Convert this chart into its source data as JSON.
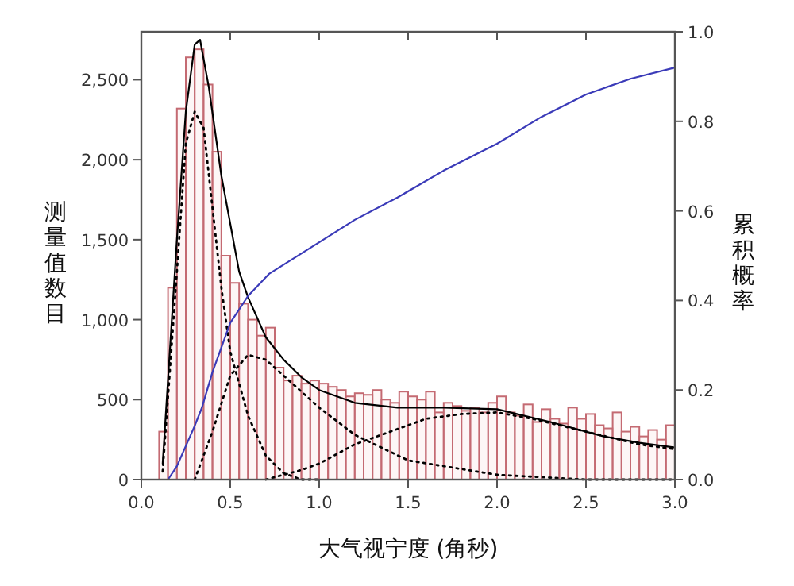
{
  "chart_data": {
    "type": "histogram",
    "xlabel": "大气视宁度 (角秒)",
    "ylabel": "测量值数目",
    "y2label": "累积概率",
    "bins": [
      0.1,
      0.15,
      0.2,
      0.25,
      0.3,
      0.35,
      0.4,
      0.45,
      0.5,
      0.55,
      0.6,
      0.65,
      0.7,
      0.75,
      0.8,
      0.85,
      0.9,
      0.95,
      1.0,
      1.05,
      1.1,
      1.15,
      1.2,
      1.25,
      1.3,
      1.35,
      1.4,
      1.45,
      1.5,
      1.55,
      1.6,
      1.65,
      1.7,
      1.75,
      1.8,
      1.85,
      1.9,
      1.95,
      2.0,
      2.05,
      2.1,
      2.15,
      2.2,
      2.25,
      2.3,
      2.35,
      2.4,
      2.45,
      2.5,
      2.55,
      2.6,
      2.65,
      2.7,
      2.75,
      2.8,
      2.85,
      2.9,
      2.95,
      3.0
    ],
    "values": [
      300,
      1200,
      2320,
      2640,
      2690,
      2470,
      2050,
      1400,
      1230,
      1100,
      1000,
      900,
      950,
      700,
      620,
      650,
      600,
      620,
      600,
      580,
      560,
      520,
      540,
      530,
      560,
      500,
      480,
      550,
      520,
      500,
      550,
      420,
      480,
      460,
      430,
      450,
      420,
      480,
      520,
      420,
      400,
      470,
      360,
      440,
      380,
      350,
      450,
      380,
      410,
      340,
      320,
      420,
      300,
      330,
      270,
      310,
      250,
      340
    ],
    "color": "#c46a72",
    "series": [
      {
        "type": "line",
        "color": "#000000",
        "line_style": "solid",
        "x": [
          0.12,
          0.2,
          0.25,
          0.3,
          0.33,
          0.38,
          0.45,
          0.55,
          0.6,
          0.7,
          0.8,
          0.9,
          1.0,
          1.2,
          1.44,
          1.7,
          2.0,
          2.3,
          2.6,
          2.8,
          3.0
        ],
        "values": [
          100,
          1500,
          2300,
          2720,
          2750,
          2450,
          1900,
          1300,
          1140,
          890,
          750,
          640,
          560,
          480,
          450,
          450,
          440,
          360,
          270,
          230,
          200
        ]
      },
      {
        "type": "line",
        "color": "#000000",
        "line_style": "dotted",
        "x": [
          0.12,
          0.2,
          0.25,
          0.3,
          0.35,
          0.4,
          0.45,
          0.5,
          0.6,
          0.7,
          0.8,
          0.9,
          1.0
        ],
        "values": [
          50,
          1300,
          2100,
          2300,
          2200,
          1700,
          1200,
          800,
          400,
          150,
          40,
          0,
          0
        ]
      },
      {
        "type": "line",
        "color": "#000000",
        "line_style": "dotted",
        "x": [
          0.3,
          0.4,
          0.5,
          0.6,
          0.7,
          0.8,
          1.0,
          1.2,
          1.5,
          2.0,
          2.5,
          3.0
        ],
        "values": [
          0,
          300,
          650,
          780,
          750,
          650,
          450,
          280,
          120,
          30,
          0,
          0
        ]
      },
      {
        "type": "line",
        "color": "#000000",
        "line_style": "dotted",
        "x": [
          0.7,
          0.9,
          1.0,
          1.2,
          1.4,
          1.6,
          1.8,
          2.0,
          2.2,
          2.5,
          2.8,
          3.0
        ],
        "values": [
          0,
          60,
          100,
          220,
          300,
          380,
          410,
          420,
          380,
          300,
          220,
          190
        ]
      },
      {
        "type": "line",
        "color": "#3a3ab8",
        "line_style": "solid",
        "axis": "y2",
        "x": [
          0.15,
          0.2,
          0.3,
          0.34,
          0.4,
          0.5,
          0.6,
          0.72,
          1.0,
          1.2,
          1.44,
          1.7,
          2.0,
          2.25,
          2.5,
          2.75,
          3.0
        ],
        "values": [
          0,
          0.03,
          0.12,
          0.16,
          0.24,
          0.35,
          0.41,
          0.46,
          0.53,
          0.58,
          0.63,
          0.69,
          0.75,
          0.81,
          0.86,
          0.895,
          0.92
        ]
      }
    ],
    "xlim": [
      0,
      3
    ],
    "ylim": [
      0,
      2800
    ],
    "y2lim": [
      0,
      1
    ],
    "xticks": [
      {
        "value": 0,
        "label": "0.0"
      },
      {
        "value": 0.5,
        "label": "0.5"
      },
      {
        "value": 1,
        "label": "1.0"
      },
      {
        "value": 1.5,
        "label": "1.5"
      },
      {
        "value": 2,
        "label": "2.0"
      },
      {
        "value": 2.5,
        "label": "2.5"
      },
      {
        "value": 3,
        "label": "3.0"
      }
    ],
    "yticks": [
      0,
      500,
      {
        "value": 1000,
        "label": "1,000"
      },
      {
        "value": 1500,
        "label": "1,500"
      },
      {
        "value": 2000,
        "label": "2,000"
      },
      {
        "value": 2500,
        "label": "2,500"
      }
    ],
    "y2ticks": [
      {
        "value": 0,
        "label": "0.0"
      },
      {
        "value": 0.2,
        "label": "0.2"
      },
      {
        "value": 0.4,
        "label": "0.4"
      },
      {
        "value": 0.6,
        "label": "0.6"
      },
      {
        "value": 0.8,
        "label": "0.8"
      },
      {
        "value": 1,
        "label": "1.0"
      }
    ]
  }
}
